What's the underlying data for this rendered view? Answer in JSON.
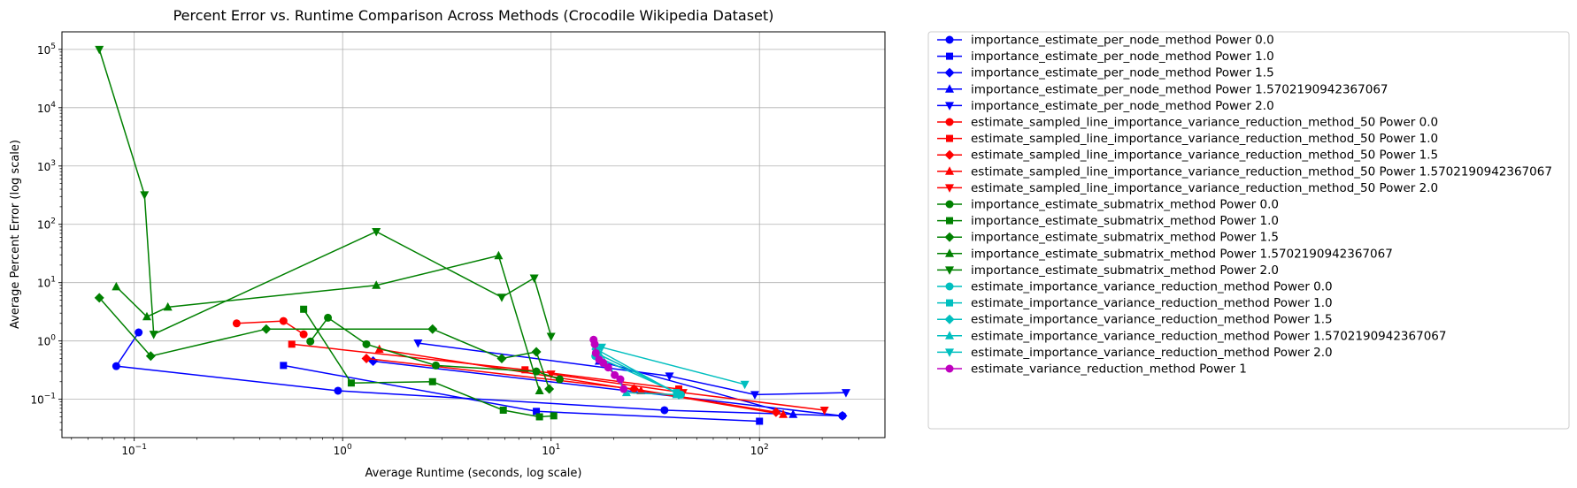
{
  "chart_data": {
    "type": "line",
    "title": "Percent Error vs. Runtime Comparison Across Methods (Crocodile Wikipedia Dataset)",
    "xlabel": "Average Runtime (seconds, log scale)",
    "ylabel": "Average Percent Error (log scale)",
    "xscale": "log",
    "yscale": "log",
    "xlim": [
      0.045,
      400
    ],
    "ylim": [
      0.022,
      200000
    ],
    "grid": true,
    "legend_position": "outside-right",
    "x_ticks": [
      {
        "value": 0.1,
        "base": "10",
        "exp": "−1"
      },
      {
        "value": 1,
        "base": "10",
        "exp": "0"
      },
      {
        "value": 10,
        "base": "10",
        "exp": "1"
      },
      {
        "value": 100,
        "base": "10",
        "exp": "2"
      }
    ],
    "y_ticks": [
      {
        "value": 0.1,
        "base": "10",
        "exp": "−1"
      },
      {
        "value": 1,
        "base": "10",
        "exp": "0"
      },
      {
        "value": 10,
        "base": "10",
        "exp": "1"
      },
      {
        "value": 100,
        "base": "10",
        "exp": "2"
      },
      {
        "value": 1000,
        "base": "10",
        "exp": "3"
      },
      {
        "value": 10000,
        "base": "10",
        "exp": "4"
      },
      {
        "value": 100000,
        "base": "10",
        "exp": "5"
      }
    ],
    "series": [
      {
        "name": "importance_estimate_per_node_method Power 0.0",
        "color": "#0000ff",
        "marker": "circle",
        "x": [
          0.105,
          0.082,
          0.95,
          35,
          250
        ],
        "y": [
          1.4,
          0.37,
          0.14,
          0.065,
          0.052
        ]
      },
      {
        "name": "importance_estimate_per_node_method Power 1.0",
        "color": "#0000ff",
        "marker": "square",
        "x": [
          0.52,
          8.5,
          100
        ],
        "y": [
          0.38,
          0.062,
          0.042
        ]
      },
      {
        "name": "importance_estimate_per_node_method Power 1.5",
        "color": "#0000ff",
        "marker": "diamond",
        "x": [
          1.4,
          250
        ],
        "y": [
          0.45,
          0.052
        ]
      },
      {
        "name": "importance_estimate_per_node_method Power 1.5702190942367067",
        "color": "#0000ff",
        "marker": "triangle-up",
        "x": [
          17,
          145
        ],
        "y": [
          0.45,
          0.055
        ]
      },
      {
        "name": "importance_estimate_per_node_method Power 2.0",
        "color": "#0000ff",
        "marker": "triangle-down",
        "x": [
          2.3,
          37,
          95,
          260
        ],
        "y": [
          0.92,
          0.25,
          0.12,
          0.13
        ]
      },
      {
        "name": "estimate_sampled_line_importance_variance_reduction_method_50 Power 0.0",
        "color": "#ff0000",
        "marker": "circle",
        "x": [
          0.31,
          0.52,
          0.65
        ],
        "y": [
          2.0,
          2.2,
          1.3
        ]
      },
      {
        "name": "estimate_sampled_line_importance_variance_reduction_method_50 Power 1.0",
        "color": "#ff0000",
        "marker": "square",
        "x": [
          0.57,
          7.5,
          41
        ],
        "y": [
          0.88,
          0.32,
          0.15
        ]
      },
      {
        "name": "estimate_sampled_line_importance_variance_reduction_method_50 Power 1.5",
        "color": "#ff0000",
        "marker": "diamond",
        "x": [
          1.3,
          25,
          120
        ],
        "y": [
          0.5,
          0.15,
          0.06
        ]
      },
      {
        "name": "estimate_sampled_line_importance_variance_reduction_method_50 Power 1.5702190942367067",
        "color": "#ff0000",
        "marker": "triangle-up",
        "x": [
          1.5,
          27,
          130
        ],
        "y": [
          0.72,
          0.14,
          0.055
        ]
      },
      {
        "name": "estimate_sampled_line_importance_variance_reduction_method_50 Power 2.0",
        "color": "#ff0000",
        "marker": "triangle-down",
        "x": [
          10,
          43,
          205
        ],
        "y": [
          0.27,
          0.13,
          0.065
        ]
      },
      {
        "name": "importance_estimate_submatrix_method Power 0.0",
        "color": "#008000",
        "marker": "circle",
        "x": [
          0.7,
          0.85,
          1.3,
          2.8,
          8.5,
          11
        ],
        "y": [
          0.98,
          2.5,
          0.88,
          0.38,
          0.3,
          0.22
        ]
      },
      {
        "name": "importance_estimate_submatrix_method Power 1.0",
        "color": "#008000",
        "marker": "square",
        "x": [
          0.65,
          1.1,
          2.7,
          5.9,
          8.8,
          10.3
        ],
        "y": [
          3.5,
          0.19,
          0.2,
          0.065,
          0.05,
          0.052
        ]
      },
      {
        "name": "importance_estimate_submatrix_method Power 1.5",
        "color": "#008000",
        "marker": "diamond",
        "x": [
          0.068,
          0.12,
          0.43,
          2.7,
          5.8,
          8.5,
          9.8
        ],
        "y": [
          5.5,
          0.55,
          1.6,
          1.6,
          0.5,
          0.65,
          0.15
        ]
      },
      {
        "name": "importance_estimate_submatrix_method Power 1.5702190942367067",
        "color": "#008000",
        "marker": "triangle-up",
        "x": [
          0.082,
          0.115,
          0.145,
          1.45,
          5.6,
          8.8
        ],
        "y": [
          8.5,
          2.6,
          3.8,
          9.0,
          29,
          0.14
        ]
      },
      {
        "name": "importance_estimate_submatrix_method Power 2.0",
        "color": "#008000",
        "marker": "triangle-down",
        "x": [
          0.068,
          0.112,
          0.124,
          1.45,
          5.8,
          8.3,
          10
        ],
        "y": [
          100000,
          320,
          1.3,
          75,
          5.6,
          12,
          1.2
        ]
      },
      {
        "name": "estimate_importance_variance_reduction_method Power 0.0",
        "color": "#00bfbf",
        "marker": "circle",
        "x": [
          16.3,
          42
        ],
        "y": [
          0.55,
          0.12
        ]
      },
      {
        "name": "estimate_importance_variance_reduction_method Power 1.0",
        "color": "#00bfbf",
        "marker": "square",
        "x": [
          16.8,
          40
        ],
        "y": [
          0.6,
          0.13
        ]
      },
      {
        "name": "estimate_importance_variance_reduction_method Power 1.5",
        "color": "#00bfbf",
        "marker": "diamond",
        "x": [
          16.5,
          41
        ],
        "y": [
          0.72,
          0.12
        ]
      },
      {
        "name": "estimate_importance_variance_reduction_method Power 1.5702190942367067",
        "color": "#00bfbf",
        "marker": "triangle-up",
        "x": [
          16.4,
          23,
          40
        ],
        "y": [
          0.82,
          0.13,
          0.12
        ]
      },
      {
        "name": "estimate_importance_variance_reduction_method Power 2.0",
        "color": "#00bfbf",
        "marker": "triangle-down",
        "x": [
          17.5,
          85
        ],
        "y": [
          0.78,
          0.18
        ]
      },
      {
        "name": "estimate_variance_reduction_method Power 1",
        "color": "#bf00bf",
        "marker": "circle",
        "x": [
          16,
          16.2,
          16.4,
          17,
          17.8,
          18.8,
          20.2,
          21.5,
          22.3
        ],
        "y": [
          1.05,
          0.88,
          0.62,
          0.48,
          0.42,
          0.35,
          0.26,
          0.22,
          0.15
        ]
      }
    ]
  }
}
